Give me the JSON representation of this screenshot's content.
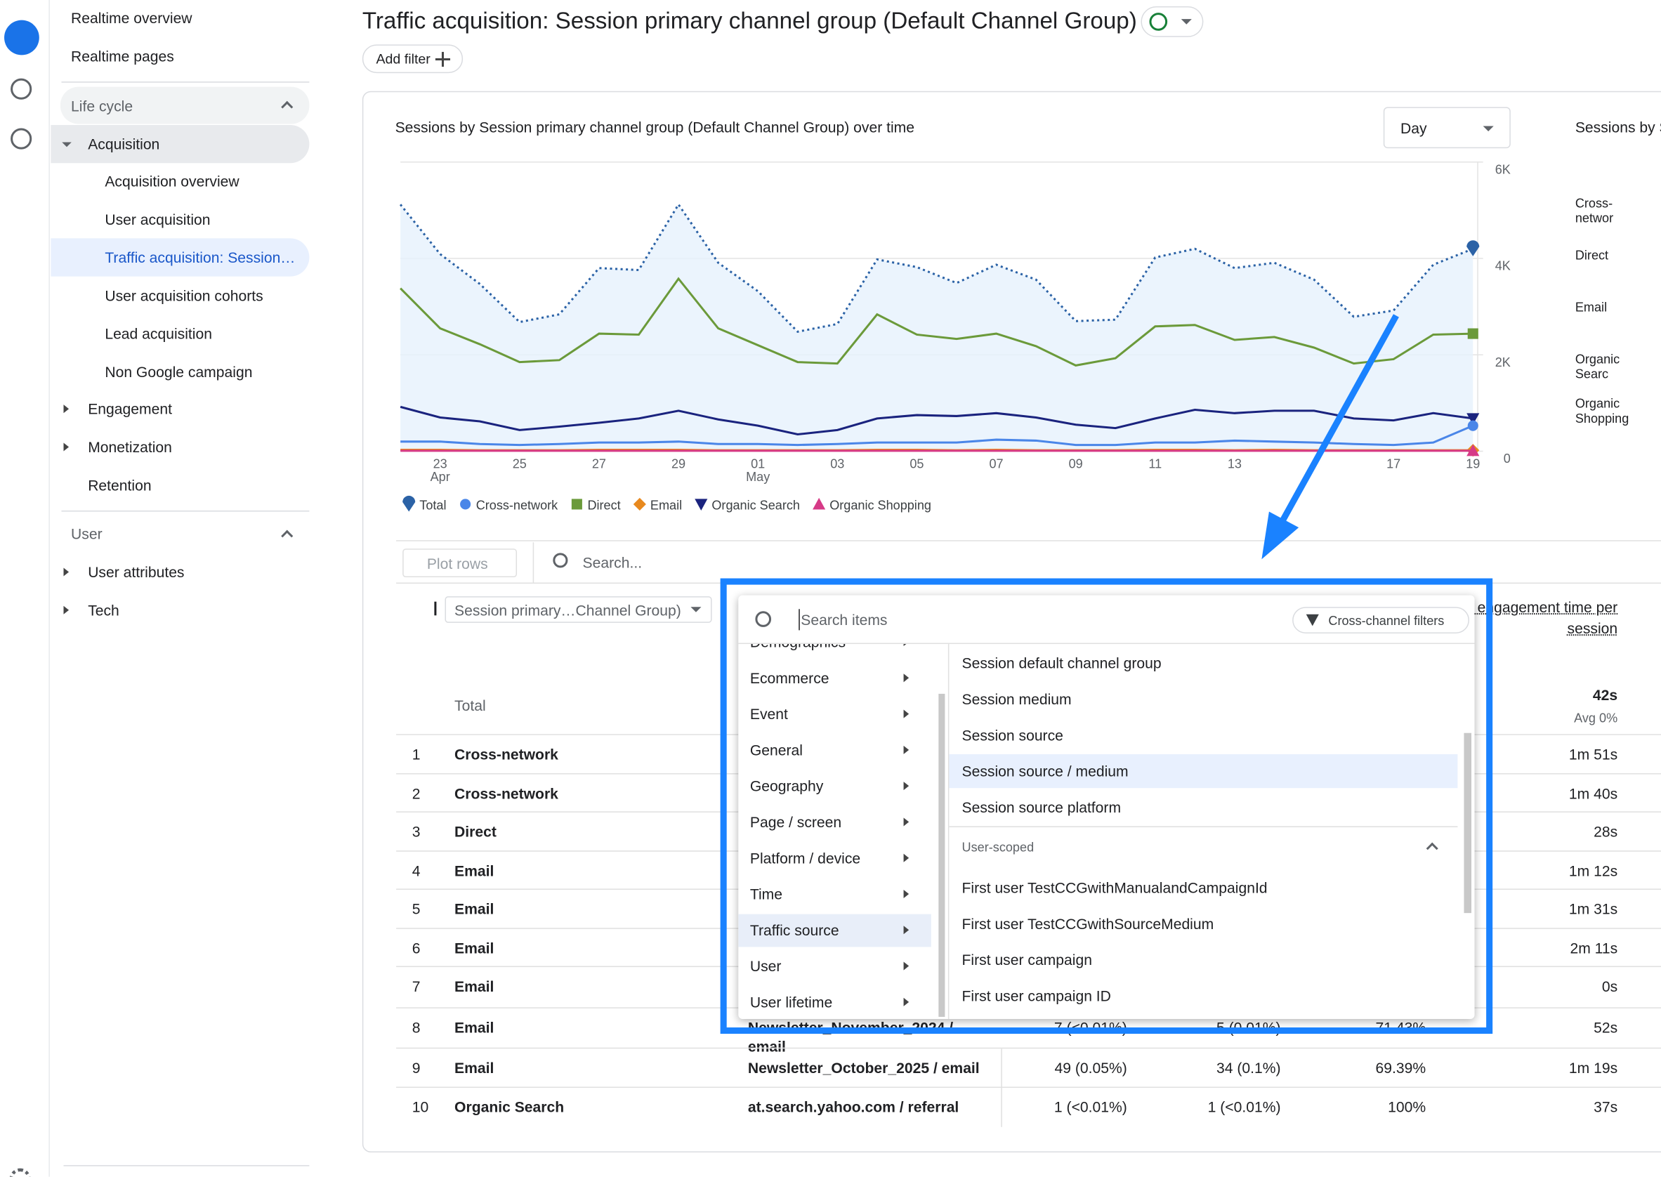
{
  "sidebar": {
    "top": [
      "Realtime overview",
      "Realtime pages"
    ],
    "lifecycle_header": "Life cycle",
    "acquisition": "Acquisition",
    "acquisition_items": [
      "Acquisition overview",
      "User acquisition",
      "Traffic acquisition: Session…",
      "User acquisition cohorts",
      "Lead acquisition",
      "Non Google campaign"
    ],
    "sections": [
      "Engagement",
      "Monetization",
      "Retention"
    ],
    "user_header": "User",
    "user_items": [
      "User attributes",
      "Tech"
    ]
  },
  "header": {
    "title": "Traffic acquisition: Session primary channel group (Default Channel Group)",
    "add_filter": "Add filter"
  },
  "chart_data": {
    "type": "line",
    "title": "Sessions by Session primary channel group (Default Channel Group) over time",
    "granularity": "Day",
    "categories": [
      null,
      "23 Apr",
      null,
      "25",
      null,
      "27",
      null,
      "29",
      null,
      "01 May",
      null,
      "03",
      null,
      "05",
      null,
      "07",
      null,
      "09",
      null,
      "11",
      null,
      "13",
      null,
      null,
      null,
      "17",
      null,
      "19"
    ],
    "series": [
      {
        "name": "Total",
        "color": "#2b62a6",
        "dashed": true,
        "area": true,
        "marker": "teardrop",
        "values": [
          5120,
          4090,
          3470,
          2680,
          2840,
          3800,
          3760,
          5120,
          3910,
          3320,
          2480,
          2640,
          3980,
          3820,
          3490,
          3870,
          3560,
          2700,
          2730,
          4020,
          4200,
          3800,
          3910,
          3560,
          2790,
          2920,
          3870,
          4200
        ]
      },
      {
        "name": "Cross-network",
        "color": "#4a86e8",
        "marker": "circle",
        "values": [
          200,
          200,
          150,
          130,
          150,
          180,
          180,
          200,
          150,
          150,
          130,
          150,
          180,
          180,
          180,
          240,
          220,
          130,
          130,
          180,
          180,
          220,
          200,
          180,
          150,
          130,
          180,
          530
        ]
      },
      {
        "name": "Direct",
        "color": "#6b9a3a",
        "marker": "square",
        "values": [
          3380,
          2550,
          2220,
          1850,
          1890,
          2440,
          2420,
          3580,
          2550,
          2200,
          1850,
          1820,
          2840,
          2420,
          2330,
          2440,
          2180,
          1780,
          1930,
          2590,
          2620,
          2310,
          2370,
          2150,
          1820,
          1910,
          2420,
          2440
        ]
      },
      {
        "name": "Email",
        "color": "#e8891e",
        "marker": "diamond",
        "values": [
          30,
          30,
          20,
          20,
          20,
          30,
          30,
          30,
          20,
          20,
          20,
          20,
          30,
          30,
          20,
          30,
          20,
          20,
          20,
          30,
          30,
          20,
          30,
          20,
          20,
          20,
          20,
          20
        ]
      },
      {
        "name": "Organic Search",
        "color": "#1a237e",
        "marker": "triangle-down",
        "values": [
          920,
          700,
          620,
          440,
          510,
          590,
          680,
          840,
          660,
          530,
          350,
          440,
          680,
          750,
          730,
          790,
          700,
          550,
          480,
          680,
          860,
          790,
          840,
          840,
          680,
          640,
          790,
          680
        ]
      },
      {
        "name": "Organic Shopping",
        "color": "#d63a87",
        "marker": "triangle",
        "values": [
          10,
          10,
          10,
          10,
          10,
          10,
          10,
          10,
          10,
          10,
          10,
          10,
          10,
          10,
          10,
          10,
          10,
          10,
          10,
          10,
          10,
          10,
          10,
          10,
          10,
          10,
          10,
          10
        ]
      }
    ],
    "ylim": [
      0,
      6000
    ],
    "yticks": [
      0,
      {
        "value": 2000,
        "label": "2K"
      },
      {
        "value": 4000,
        "label": "4K"
      },
      {
        "value": 6000,
        "label": "6K"
      }
    ],
    "grid": true
  },
  "side_panel": {
    "title": "Sessions by S",
    "labels": [
      "Cross-networ",
      "Direct",
      "Email",
      "Organic Searc",
      "Organic Shopping"
    ]
  },
  "table": {
    "plot_rows": "Plot rows",
    "search": "Search...",
    "dimension": "Session primary…Channel Group)",
    "metric_header": "Average engagement time per session",
    "total_label": "Total",
    "total_avg_time": "42s",
    "total_avg_note": "Avg 0%",
    "rows": [
      {
        "rank": "1",
        "channel": "Cross-network",
        "avg_time": "1m 51s"
      },
      {
        "rank": "2",
        "channel": "Cross-network",
        "avg_time": "1m 40s"
      },
      {
        "rank": "3",
        "channel": "Direct",
        "avg_time": "28s"
      },
      {
        "rank": "4",
        "channel": "Email",
        "avg_time": "1m 12s"
      },
      {
        "rank": "5",
        "channel": "Email",
        "avg_time": "1m 31s"
      },
      {
        "rank": "6",
        "channel": "Email",
        "avg_time": "2m 11s"
      },
      {
        "rank": "7",
        "channel": "Email",
        "avg_time": "0s"
      },
      {
        "rank": "8",
        "channel": "Email",
        "source": "Newsletter_November_2024 / email",
        "sessions": "7 (<0.01%)",
        "engaged": "5 (0.01%)",
        "rate": "71.43%",
        "avg_time": "52s"
      },
      {
        "rank": "9",
        "channel": "Email",
        "source": "Newsletter_October_2025 / email",
        "sessions": "49 (0.05%)",
        "engaged": "34 (0.1%)",
        "rate": "69.39%",
        "avg_time": "1m 19s"
      },
      {
        "rank": "10",
        "channel": "Organic Search",
        "source": "at.search.yahoo.com / referral",
        "sessions": "1 (<0.01%)",
        "engaged": "1 (<0.01%)",
        "rate": "100%",
        "avg_time": "37s"
      }
    ]
  },
  "dropdown": {
    "search_placeholder": "Search items",
    "filter_button": "Cross-channel filters",
    "categories": [
      "Demographics",
      "Ecommerce",
      "Event",
      "General",
      "Geography",
      "Page / screen",
      "Platform / device",
      "Time",
      "Traffic source",
      "User",
      "User lifetime"
    ],
    "items": [
      "Session default channel group",
      "Session medium",
      "Session source",
      "Session source / medium",
      "Session source platform"
    ],
    "section": "User-scoped",
    "section_items": [
      "First user TestCCGwithManualandCampaignId",
      "First user TestCCGwithSourceMedium",
      "First user campaign",
      "First user campaign ID"
    ]
  }
}
